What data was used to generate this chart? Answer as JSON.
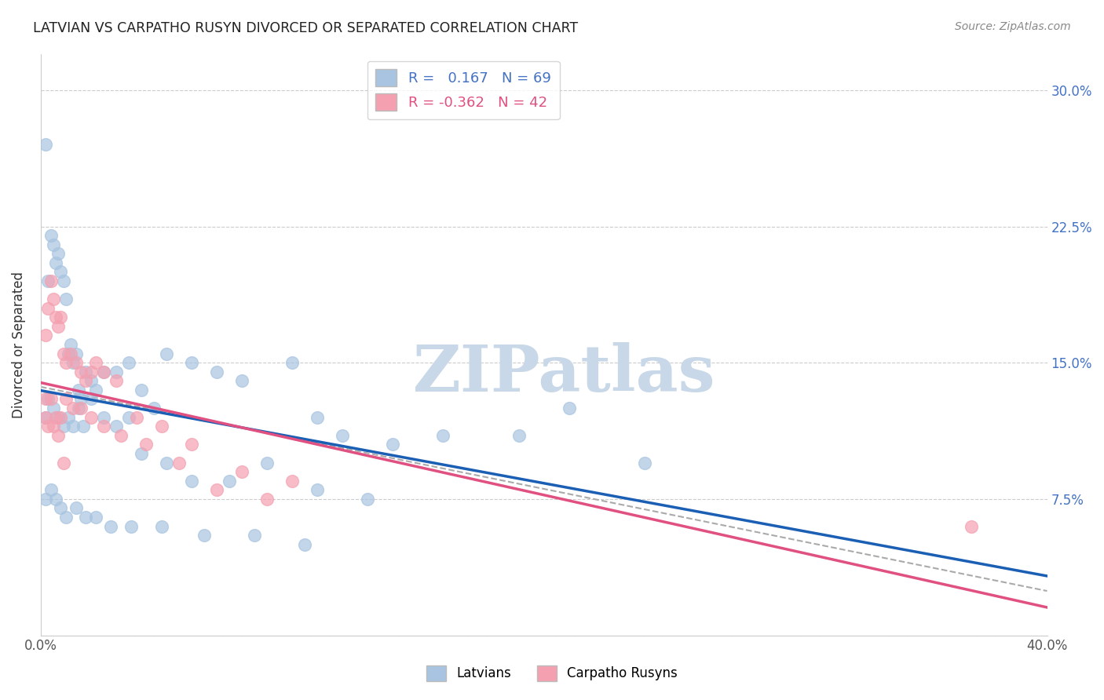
{
  "title": "LATVIAN VS CARPATHO RUSYN DIVORCED OR SEPARATED CORRELATION CHART",
  "source": "Source: ZipAtlas.com",
  "ylabel": "Divorced or Separated",
  "xlim": [
    0.0,
    0.4
  ],
  "ylim": [
    0.0,
    0.32
  ],
  "y_ticks": [
    0.0,
    0.075,
    0.15,
    0.225,
    0.3
  ],
  "y_tick_labels": [
    "",
    "7.5%",
    "15.0%",
    "22.5%",
    "30.0%"
  ],
  "grid_color": "#cccccc",
  "background_color": "#ffffff",
  "latvian_color": "#a8c4e0",
  "carpatho_color": "#f4a0b0",
  "latvian_line_color": "#1a5fb4",
  "carpatho_line_color": "#e05080",
  "trend_line_color": "#aaaaaa",
  "R_latvian": 0.167,
  "N_latvian": 69,
  "R_carpatho": -0.362,
  "N_carpatho": 42,
  "latvians_label": "Latvians",
  "carpatho_label": "Carpatho Rusyns",
  "latvian_scatter_x": [
    0.002,
    0.003,
    0.004,
    0.005,
    0.006,
    0.007,
    0.008,
    0.009,
    0.01,
    0.011,
    0.012,
    0.013,
    0.014,
    0.015,
    0.016,
    0.018,
    0.02,
    0.022,
    0.025,
    0.03,
    0.035,
    0.04,
    0.045,
    0.05,
    0.06,
    0.07,
    0.08,
    0.1,
    0.11,
    0.12,
    0.14,
    0.16,
    0.19,
    0.21,
    0.24,
    0.002,
    0.003,
    0.005,
    0.007,
    0.009,
    0.011,
    0.013,
    0.015,
    0.017,
    0.02,
    0.025,
    0.03,
    0.035,
    0.04,
    0.05,
    0.06,
    0.075,
    0.09,
    0.11,
    0.13,
    0.002,
    0.004,
    0.006,
    0.008,
    0.01,
    0.014,
    0.018,
    0.022,
    0.028,
    0.036,
    0.048,
    0.065,
    0.085,
    0.105
  ],
  "latvian_scatter_y": [
    0.27,
    0.195,
    0.22,
    0.215,
    0.205,
    0.21,
    0.2,
    0.195,
    0.185,
    0.155,
    0.16,
    0.15,
    0.155,
    0.135,
    0.13,
    0.145,
    0.14,
    0.135,
    0.145,
    0.145,
    0.15,
    0.135,
    0.125,
    0.155,
    0.15,
    0.145,
    0.14,
    0.15,
    0.12,
    0.11,
    0.105,
    0.11,
    0.11,
    0.125,
    0.095,
    0.12,
    0.13,
    0.125,
    0.12,
    0.115,
    0.12,
    0.115,
    0.125,
    0.115,
    0.13,
    0.12,
    0.115,
    0.12,
    0.1,
    0.095,
    0.085,
    0.085,
    0.095,
    0.08,
    0.075,
    0.075,
    0.08,
    0.075,
    0.07,
    0.065,
    0.07,
    0.065,
    0.065,
    0.06,
    0.06,
    0.06,
    0.055,
    0.055,
    0.05
  ],
  "carpatho_scatter_x": [
    0.002,
    0.003,
    0.004,
    0.005,
    0.006,
    0.007,
    0.008,
    0.009,
    0.01,
    0.012,
    0.014,
    0.016,
    0.018,
    0.02,
    0.022,
    0.025,
    0.03,
    0.038,
    0.048,
    0.06,
    0.08,
    0.1,
    0.002,
    0.004,
    0.006,
    0.008,
    0.01,
    0.013,
    0.016,
    0.02,
    0.025,
    0.032,
    0.042,
    0.055,
    0.07,
    0.09,
    0.002,
    0.003,
    0.005,
    0.007,
    0.009,
    0.37
  ],
  "carpatho_scatter_y": [
    0.165,
    0.18,
    0.195,
    0.185,
    0.175,
    0.17,
    0.175,
    0.155,
    0.15,
    0.155,
    0.15,
    0.145,
    0.14,
    0.145,
    0.15,
    0.145,
    0.14,
    0.12,
    0.115,
    0.105,
    0.09,
    0.085,
    0.13,
    0.13,
    0.12,
    0.12,
    0.13,
    0.125,
    0.125,
    0.12,
    0.115,
    0.11,
    0.105,
    0.095,
    0.08,
    0.075,
    0.12,
    0.115,
    0.115,
    0.11,
    0.095,
    0.06
  ],
  "watermark": "ZIPatlas",
  "watermark_color": "#c8d8e8",
  "watermark_fontsize": 60
}
